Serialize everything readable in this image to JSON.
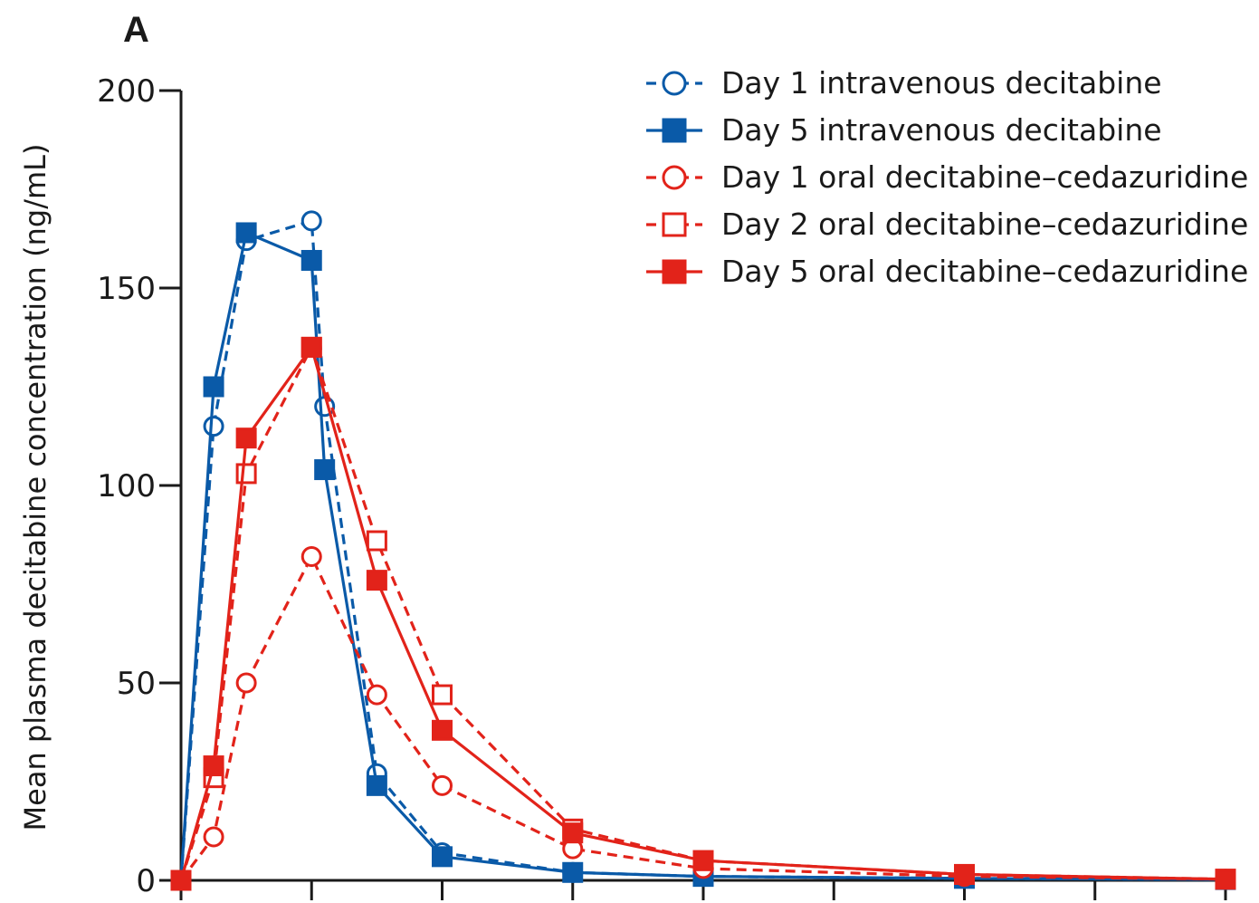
{
  "panel_label": "A",
  "chart_data": {
    "type": "line",
    "title": "",
    "xlabel": "",
    "ylabel": "Mean plasma decitabine concentration (ng/mL)",
    "ylim": [
      0,
      200
    ],
    "xlim": [
      0,
      8
    ],
    "y_ticks": [
      0,
      50,
      100,
      150,
      200
    ],
    "y_tick_labels": [
      "0",
      "50",
      "100",
      "150",
      "200"
    ],
    "x_ticks": [
      0,
      1,
      2,
      3,
      4,
      5,
      6,
      7,
      8
    ],
    "grid": false,
    "legend_position": "top-right",
    "series": [
      {
        "name": "Day 1 intravenous decitabine",
        "color": "#0a5aa8",
        "dashed": true,
        "marker": "circle",
        "filled": false,
        "x": [
          0,
          0.25,
          0.5,
          1.0,
          1.1,
          1.5,
          2.0,
          3.0,
          4.0,
          6.0,
          8.0
        ],
        "y": [
          0,
          115,
          162,
          167,
          120,
          27,
          7,
          2,
          1,
          0.5,
          0.2
        ]
      },
      {
        "name": "Day 5 intravenous decitabine",
        "color": "#0a5aa8",
        "dashed": false,
        "marker": "square",
        "filled": true,
        "x": [
          0,
          0.25,
          0.5,
          1.0,
          1.1,
          1.5,
          2.0,
          3.0,
          4.0,
          6.0,
          8.0
        ],
        "y": [
          0,
          125,
          164,
          157,
          104,
          24,
          6,
          2,
          1,
          0.5,
          0.2
        ]
      },
      {
        "name": "Day 1 oral decitabine–cedazuridine",
        "color": "#e2231a",
        "dashed": true,
        "marker": "circle",
        "filled": false,
        "x": [
          0,
          0.25,
          0.5,
          1.0,
          1.5,
          2.0,
          3.0,
          4.0,
          6.0,
          8.0
        ],
        "y": [
          0,
          11,
          50,
          82,
          47,
          24,
          8,
          3,
          1,
          0.3
        ]
      },
      {
        "name": "Day 2 oral decitabine–cedazuridine",
        "color": "#e2231a",
        "dashed": true,
        "marker": "square",
        "filled": false,
        "x": [
          0,
          0.25,
          0.5,
          1.0,
          1.5,
          2.0,
          3.0,
          4.0,
          6.0,
          8.0
        ],
        "y": [
          0,
          26,
          103,
          135,
          86,
          47,
          13,
          5,
          1.5,
          0.3
        ]
      },
      {
        "name": "Day 5 oral decitabine–cedazuridine",
        "color": "#e2231a",
        "dashed": false,
        "marker": "square",
        "filled": true,
        "x": [
          0,
          0.25,
          0.5,
          1.0,
          1.5,
          2.0,
          3.0,
          4.0,
          6.0,
          8.0
        ],
        "y": [
          0,
          29,
          112,
          135,
          76,
          38,
          12,
          5,
          1.5,
          0.3
        ]
      }
    ]
  }
}
